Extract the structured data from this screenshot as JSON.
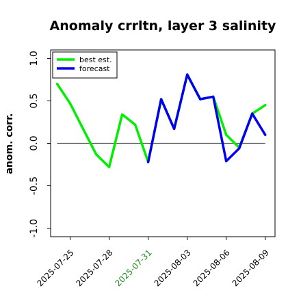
{
  "chart_data": {
    "type": "line",
    "title": "Anomaly crrltn, layer 3 salinity",
    "ylabel": "anom. corr.",
    "ylim": [
      -1.1,
      1.1
    ],
    "yticks": [
      "-1.0",
      "-0.5",
      "0.0",
      "0.5",
      "1.0"
    ],
    "ytick_values": [
      -1.0,
      -0.5,
      0.0,
      0.5,
      1.0
    ],
    "x_dates": [
      "2025-07-24",
      "2025-07-25",
      "2025-07-26",
      "2025-07-27",
      "2025-07-28",
      "2025-07-29",
      "2025-07-30",
      "2025-07-31",
      "2025-08-01",
      "2025-08-02",
      "2025-08-03",
      "2025-08-04",
      "2025-08-05",
      "2025-08-06",
      "2025-08-07",
      "2025-08-08",
      "2025-08-09"
    ],
    "xlim": [
      "2025-07-23T12:00",
      "2025-08-09T18:00"
    ],
    "xticks": [
      {
        "label": "2025-07-25",
        "date": "2025-07-25",
        "color": "#000000"
      },
      {
        "label": "2025-07-28",
        "date": "2025-07-28",
        "color": "#000000"
      },
      {
        "label": "2025-07-31",
        "date": "2025-07-31",
        "color": "#228B22"
      },
      {
        "label": "2025-08-03",
        "date": "2025-08-03",
        "color": "#000000"
      },
      {
        "label": "2025-08-06",
        "date": "2025-08-06",
        "color": "#000000"
      },
      {
        "label": "2025-08-09",
        "date": "2025-08-09",
        "color": "#000000"
      }
    ],
    "zero_line": 0.0,
    "legend_position": "top-left",
    "series": [
      {
        "name": "best est.",
        "color": "#00ee00",
        "x": [
          "2025-07-24",
          "2025-07-25",
          "2025-07-26",
          "2025-07-27",
          "2025-07-28",
          "2025-07-29",
          "2025-07-30",
          "2025-07-31",
          "2025-08-01",
          "2025-08-02",
          "2025-08-03",
          "2025-08-04",
          "2025-08-05",
          "2025-08-06",
          "2025-08-07",
          "2025-08-08",
          "2025-08-09"
        ],
        "values": [
          0.7,
          0.47,
          0.17,
          -0.13,
          -0.28,
          0.34,
          0.22,
          -0.22,
          0.52,
          0.17,
          0.81,
          0.52,
          0.55,
          0.1,
          -0.05,
          0.35,
          0.45
        ]
      },
      {
        "name": "forecast",
        "color": "#0000ee",
        "x": [
          "2025-07-31",
          "2025-08-01",
          "2025-08-02",
          "2025-08-03",
          "2025-08-04",
          "2025-08-05",
          "2025-08-06",
          "2025-08-07",
          "2025-08-08",
          "2025-08-09"
        ],
        "values": [
          -0.22,
          0.52,
          0.17,
          0.81,
          0.52,
          0.55,
          -0.21,
          -0.06,
          0.35,
          0.1
        ]
      }
    ]
  }
}
